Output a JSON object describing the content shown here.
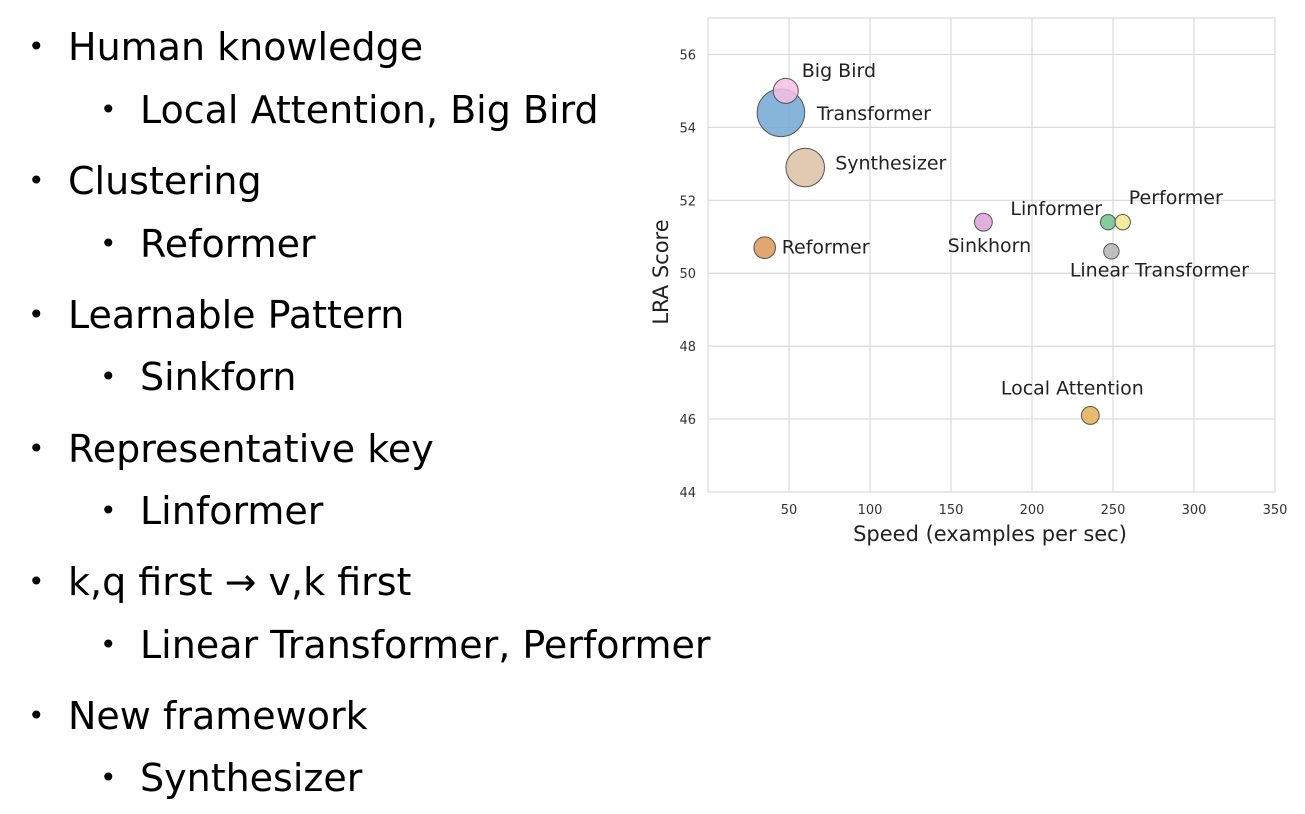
{
  "bullets": [
    {
      "label": "Human knowledge",
      "sub": "Local Attention, Big Bird"
    },
    {
      "label": "Clustering",
      "sub": "Reformer"
    },
    {
      "label": "Learnable Pattern",
      "sub": "Sinkforn"
    },
    {
      "label": "Representative key",
      "sub": "Linformer"
    },
    {
      "label": "k,q first → v,k first",
      "sub": "Linear Transformer, Performer"
    },
    {
      "label": "New framework",
      "sub": "Synthesizer"
    }
  ],
  "bullet_glyph": "•",
  "chart_data": {
    "type": "scatter",
    "xlabel": "Speed (examples per sec)",
    "ylabel": "LRA Score",
    "xlim": [
      0,
      350
    ],
    "ylim": [
      44,
      57
    ],
    "xticks": [
      50,
      100,
      150,
      200,
      250,
      300,
      350
    ],
    "yticks": [
      44,
      46,
      48,
      50,
      52,
      54,
      56
    ],
    "grid": true,
    "points": [
      {
        "label": "Big Bird",
        "x": 48,
        "y": 55.0,
        "color": "#f4bfe4",
        "size": 0.8
      },
      {
        "label": "Transformer",
        "x": 45,
        "y": 54.4,
        "color": "#72a8d2",
        "size": 2.9
      },
      {
        "label": "Synthesizer",
        "x": 60,
        "y": 52.9,
        "color": "#dcc0a4",
        "size": 1.9
      },
      {
        "label": "Reformer",
        "x": 35,
        "y": 50.7,
        "color": "#dd9658",
        "size": 0.6
      },
      {
        "label": "Sinkhorn",
        "x": 170,
        "y": 51.4,
        "color": "#dca2d6",
        "size": 0.4
      },
      {
        "label": "Linformer",
        "x": 247,
        "y": 51.4,
        "color": "#6ec28d",
        "size": 0.3
      },
      {
        "label": "Performer",
        "x": 256,
        "y": 51.4,
        "color": "#f1ea8a",
        "size": 0.3
      },
      {
        "label": "Linear Transformer",
        "x": 249,
        "y": 50.6,
        "color": "#b4b4b4",
        "size": 0.3
      },
      {
        "label": "Local Attention",
        "x": 236,
        "y": 46.1,
        "color": "#e4b054",
        "size": 0.4
      }
    ]
  }
}
